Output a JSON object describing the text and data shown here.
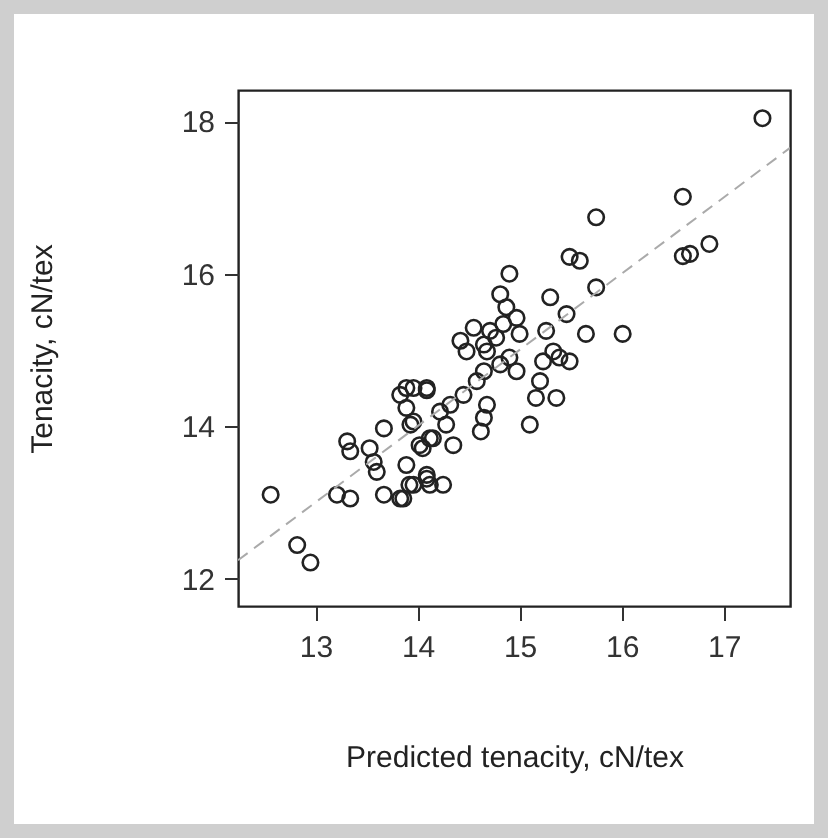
{
  "chart_data": {
    "type": "scatter",
    "xlabel": "Predicted tenacity, cN/tex",
    "ylabel": "Tenacity, cN/tex",
    "xlim": [
      12.24,
      17.65
    ],
    "ylim": [
      11.64,
      18.41
    ],
    "xticks": [
      13,
      14,
      15,
      16,
      17
    ],
    "yticks": [
      12,
      14,
      16,
      18
    ],
    "series": [
      {
        "marker": "circle",
        "color": "#222222",
        "x": [
          12.56,
          12.82,
          12.95,
          13.21,
          13.34,
          13.31,
          13.34,
          13.53,
          13.57,
          13.6,
          13.67,
          13.67,
          13.83,
          13.83,
          13.96,
          14.09,
          13.89,
          13.96,
          13.89,
          13.92,
          14.09,
          14.05,
          14.12,
          14.12,
          13.89,
          14.09,
          13.93,
          13.86,
          13.96,
          14.09,
          14.25,
          14.02,
          14.15,
          14.22,
          14.32,
          14.35,
          14.28,
          14.45,
          14.42,
          14.55,
          14.58,
          14.62,
          14.65,
          14.68,
          14.65,
          14.68,
          14.71,
          14.77,
          14.81,
          14.84,
          14.81,
          14.87,
          14.9,
          14.97,
          15.0,
          14.9,
          14.97,
          15.1,
          15.16,
          15.2,
          15.23,
          15.33,
          15.36,
          15.39,
          15.49,
          15.26,
          15.3,
          15.46,
          15.49,
          15.59,
          15.65,
          15.75,
          15.75,
          16.01,
          16.6,
          16.6,
          16.67,
          16.86,
          17.38,
          14.48,
          14.65
        ],
        "values": [
          13.1,
          12.44,
          12.21,
          13.1,
          13.05,
          13.8,
          13.67,
          13.71,
          13.53,
          13.4,
          13.97,
          13.1,
          13.05,
          14.41,
          14.5,
          14.47,
          14.24,
          14.06,
          13.49,
          13.23,
          13.31,
          13.71,
          13.84,
          13.23,
          14.5,
          14.5,
          14.02,
          13.05,
          13.23,
          13.36,
          13.23,
          13.75,
          13.84,
          14.19,
          14.28,
          13.75,
          14.02,
          14.41,
          15.12,
          15.29,
          14.59,
          13.93,
          14.11,
          14.28,
          14.72,
          14.98,
          15.25,
          15.16,
          14.81,
          15.34,
          15.73,
          15.56,
          16.0,
          15.42,
          15.21,
          14.9,
          14.72,
          14.02,
          14.37,
          14.59,
          14.85,
          14.98,
          14.37,
          14.9,
          14.85,
          15.25,
          15.69,
          15.47,
          16.22,
          16.17,
          15.21,
          15.82,
          16.74,
          15.21,
          17.01,
          16.23,
          16.26,
          16.39,
          18.04,
          14.98,
          15.07
        ]
      },
      {
        "type": "line",
        "color": "#aaaaaa",
        "line_style": "dashed",
        "x": [
          12.24,
          17.65
        ],
        "values": [
          12.24,
          17.65
        ]
      }
    ]
  }
}
